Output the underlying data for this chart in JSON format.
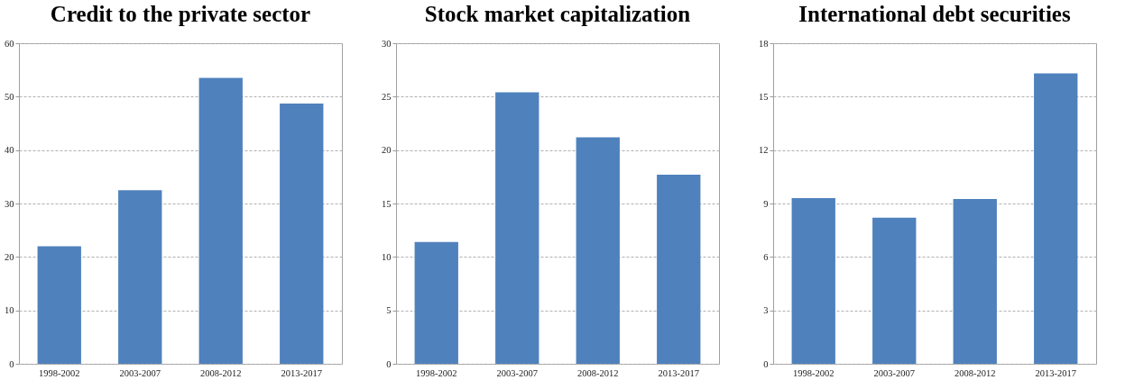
{
  "chart_data": [
    {
      "type": "bar",
      "title": "Credit to the private sector",
      "categories": [
        "1998-2002",
        "2003-2007",
        "2008-2012",
        "2013-2017"
      ],
      "values": [
        22,
        32.5,
        53.5,
        48.7
      ],
      "color": "#4f81bd",
      "ylim": [
        0,
        60
      ],
      "yticks": [
        0,
        10,
        20,
        30,
        40,
        50,
        60
      ],
      "grid": "y"
    },
    {
      "type": "bar",
      "title": "Stock market capitalization",
      "categories": [
        "1998-2002",
        "2003-2007",
        "2008-2012",
        "2013-2017"
      ],
      "values": [
        11.4,
        25.4,
        21.2,
        17.7
      ],
      "color": "#4f81bd",
      "ylim": [
        0,
        30
      ],
      "yticks": [
        0,
        5,
        10,
        15,
        20,
        25,
        30
      ],
      "grid": "y"
    },
    {
      "type": "bar",
      "title": "International debt securities",
      "categories": [
        "1998-2002",
        "2003-2007",
        "2008-2012",
        "2013-2017"
      ],
      "values": [
        9.3,
        8.2,
        9.25,
        16.3
      ],
      "color": "#4f81bd",
      "ylim": [
        0,
        18
      ],
      "yticks": [
        0,
        3,
        6,
        9,
        12,
        15,
        18
      ],
      "grid": "y"
    }
  ]
}
